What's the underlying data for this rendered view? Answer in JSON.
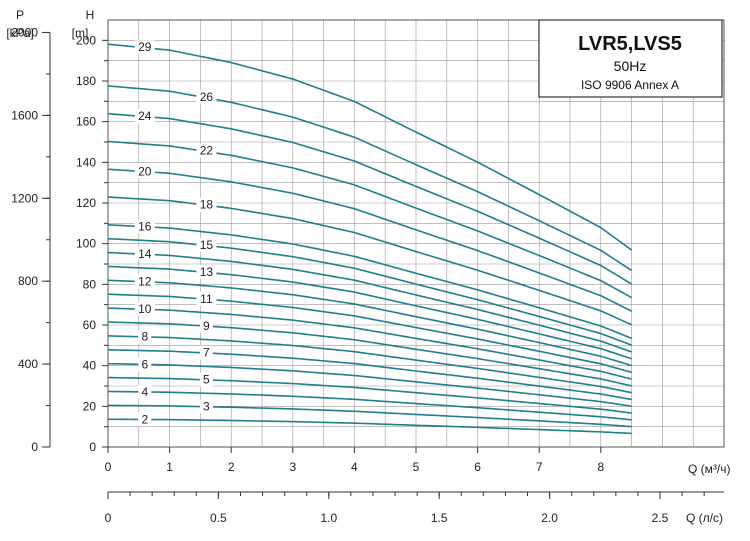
{
  "chart_data": {
    "type": "line",
    "title": "LVR5,LVS5",
    "subtitle": "50Hz",
    "standard": "ISO 9906 Annex A",
    "line_color": "#1f7f8c",
    "x_axis": {
      "label": "Q (м³/ч)",
      "range": [
        0,
        10
      ],
      "ticks": [
        0,
        1,
        2,
        3,
        4,
        5,
        6,
        7,
        8
      ],
      "tick_labels": [
        "0",
        "1",
        "2",
        "3",
        "4",
        "5",
        "6",
        "7",
        "8"
      ]
    },
    "x_axis_secondary": {
      "label": "Q (л/с)",
      "ticks": [
        0,
        0.5,
        1.0,
        1.5,
        2.0,
        2.5
      ],
      "tick_labels": [
        "0",
        "0.5",
        "1.0",
        "1.5",
        "2.0",
        "2.5"
      ]
    },
    "y_axis": {
      "label_top": "H",
      "label_unit": "[m]",
      "range": [
        0,
        210
      ],
      "ticks": [
        0,
        20,
        40,
        60,
        80,
        100,
        120,
        140,
        160,
        180,
        200
      ],
      "tick_labels": [
        "0",
        "20",
        "40",
        "60",
        "80",
        "100",
        "120",
        "140",
        "160",
        "180",
        "200"
      ]
    },
    "y_axis_secondary": {
      "label_top": "P",
      "label_unit": "[kPa]",
      "ticks": [
        0,
        400,
        800,
        1200,
        1600,
        2000
      ],
      "tick_labels": [
        "0",
        "400",
        "800",
        "1200",
        "1600",
        "2000"
      ]
    },
    "grid": true,
    "stage_curve": {
      "q": [
        0,
        1,
        2,
        3,
        4,
        5,
        6,
        7,
        8,
        8.5
      ],
      "head_per_stage": [
        6.83,
        6.73,
        6.52,
        6.24,
        5.86,
        5.34,
        4.83,
        4.28,
        3.72,
        3.34
      ]
    },
    "series": [
      {
        "name": "2",
        "stages": 2
      },
      {
        "name": "3",
        "stages": 3
      },
      {
        "name": "4",
        "stages": 4
      },
      {
        "name": "5",
        "stages": 5
      },
      {
        "name": "6",
        "stages": 6
      },
      {
        "name": "7",
        "stages": 7
      },
      {
        "name": "8",
        "stages": 8
      },
      {
        "name": "9",
        "stages": 9
      },
      {
        "name": "10",
        "stages": 10
      },
      {
        "name": "11",
        "stages": 11
      },
      {
        "name": "12",
        "stages": 12
      },
      {
        "name": "13",
        "stages": 13
      },
      {
        "name": "14",
        "stages": 14
      },
      {
        "name": "15",
        "stages": 15
      },
      {
        "name": "16",
        "stages": 16
      },
      {
        "name": "18",
        "stages": 18
      },
      {
        "name": "20",
        "stages": 20
      },
      {
        "name": "22",
        "stages": 22
      },
      {
        "name": "24",
        "stages": 24
      },
      {
        "name": "26",
        "stages": 26
      },
      {
        "name": "29",
        "stages": 29
      }
    ],
    "curve_labels": [
      {
        "text": "2",
        "q": 0.5,
        "stages": 2
      },
      {
        "text": "3",
        "q": 1.5,
        "stages": 3
      },
      {
        "text": "4",
        "q": 0.5,
        "stages": 4
      },
      {
        "text": "5",
        "q": 1.5,
        "stages": 5
      },
      {
        "text": "6",
        "q": 0.5,
        "stages": 6
      },
      {
        "text": "7",
        "q": 1.5,
        "stages": 7
      },
      {
        "text": "8",
        "q": 0.5,
        "stages": 8
      },
      {
        "text": "9",
        "q": 1.5,
        "stages": 9
      },
      {
        "text": "10",
        "q": 0.5,
        "stages": 10
      },
      {
        "text": "11",
        "q": 1.5,
        "stages": 11
      },
      {
        "text": "12",
        "q": 0.5,
        "stages": 12
      },
      {
        "text": "13",
        "q": 1.5,
        "stages": 13
      },
      {
        "text": "14",
        "q": 0.5,
        "stages": 14
      },
      {
        "text": "15",
        "q": 1.5,
        "stages": 15
      },
      {
        "text": "16",
        "q": 0.5,
        "stages": 16
      },
      {
        "text": "18",
        "q": 1.5,
        "stages": 18
      },
      {
        "text": "20",
        "q": 0.5,
        "stages": 20
      },
      {
        "text": "22",
        "q": 1.5,
        "stages": 22
      },
      {
        "text": "24",
        "q": 0.5,
        "stages": 24
      },
      {
        "text": "26",
        "q": 1.5,
        "stages": 26
      },
      {
        "text": "29",
        "q": 0.5,
        "stages": 29
      }
    ]
  }
}
